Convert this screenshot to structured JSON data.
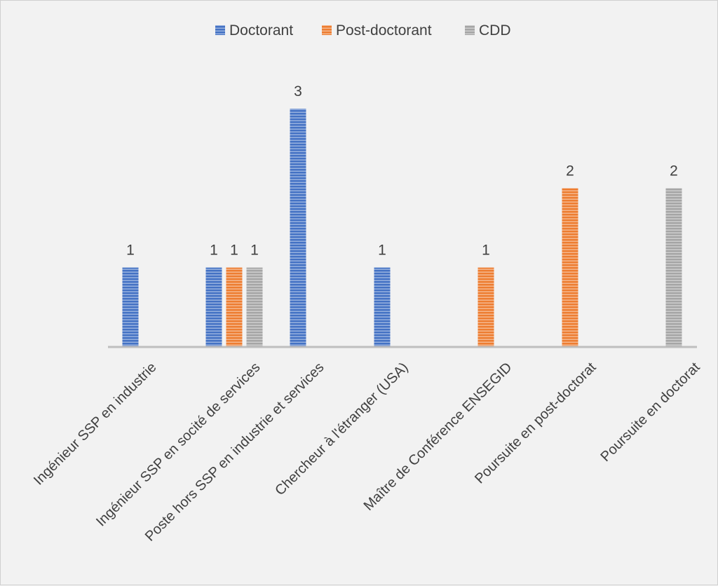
{
  "chart_data": {
    "type": "bar",
    "title": "",
    "xlabel": "",
    "ylabel": "",
    "ylim": [
      0,
      3
    ],
    "grid": false,
    "legend_position": "top",
    "categories": [
      "Ingénieur SSP en industrie",
      "Ingénieur SSP en socité de services",
      "Poste hors SSP en industrie et services",
      "Chercheur  à l'étranger (USA)",
      "Maître de Conférence ENSEGID",
      "Poursuite en post-doctorat",
      "Poursuite en doctorat"
    ],
    "series": [
      {
        "name": "Doctorant",
        "color": "#4472c4",
        "values": [
          1,
          1,
          3,
          1,
          null,
          null,
          null
        ]
      },
      {
        "name": "Post-doctorant",
        "color": "#ed7d31",
        "values": [
          null,
          1,
          null,
          null,
          1,
          2,
          null
        ]
      },
      {
        "name": "CDD",
        "color": "#a5a5a5",
        "values": [
          null,
          1,
          null,
          null,
          null,
          null,
          2
        ]
      }
    ]
  }
}
